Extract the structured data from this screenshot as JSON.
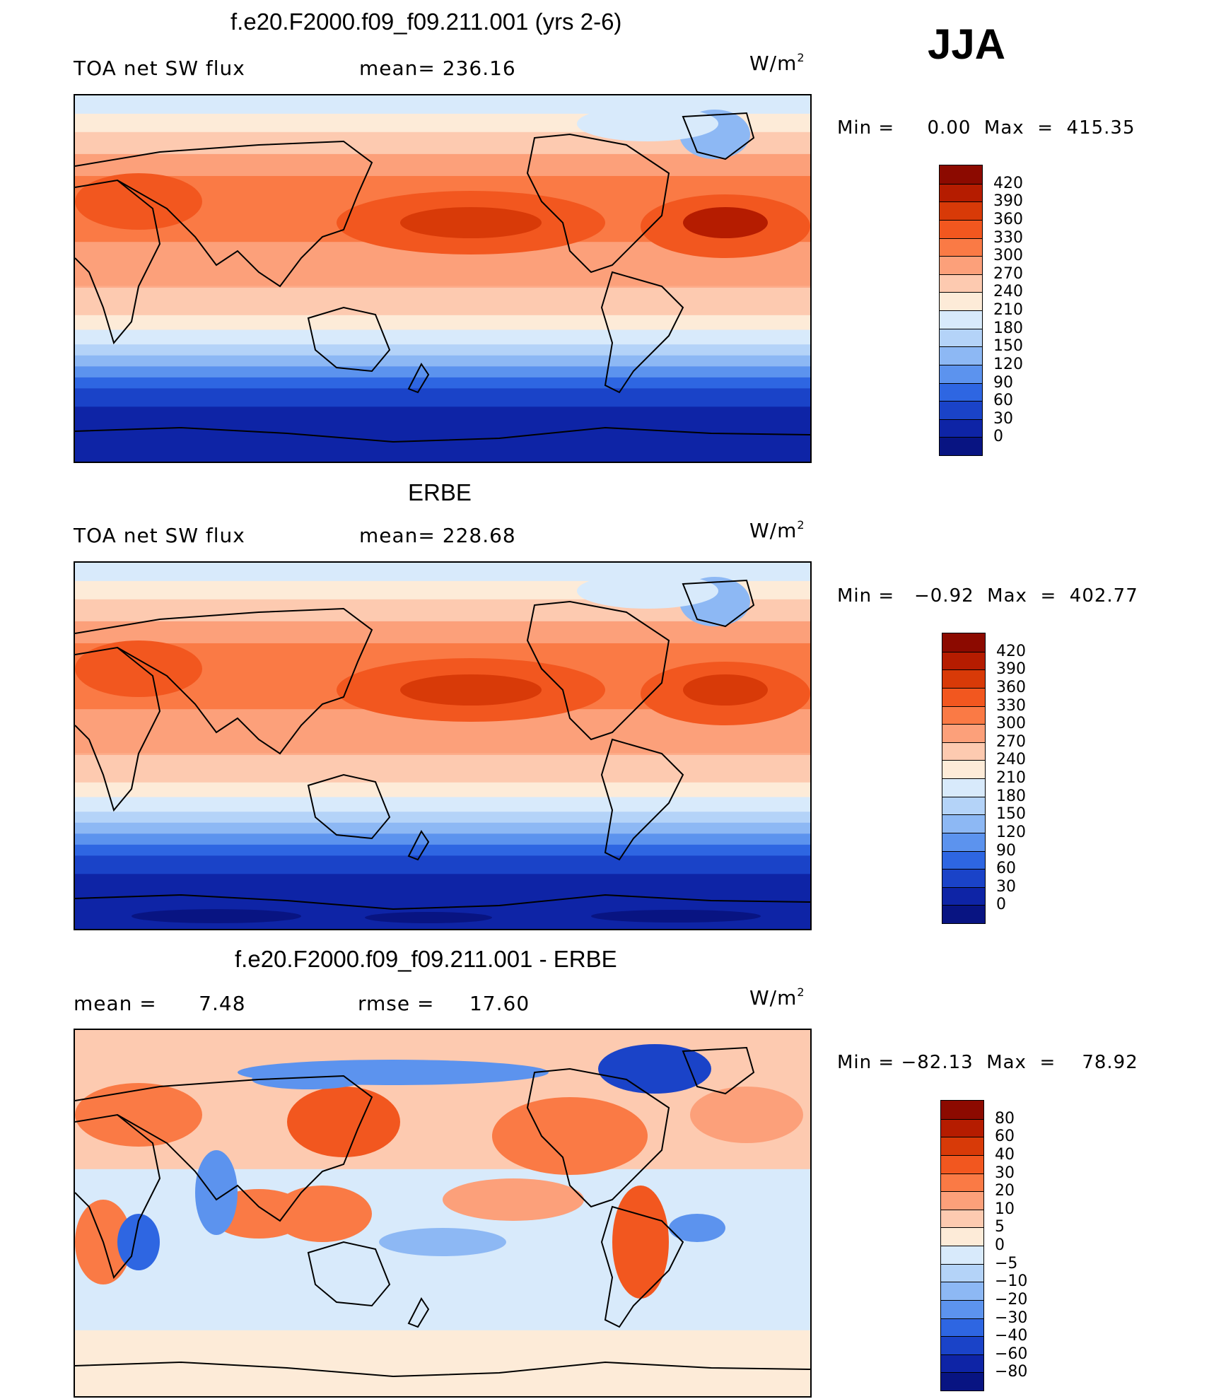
{
  "season": "JJA",
  "panels": [
    {
      "title": "f.e20.F2000.f09_f09.211.001 (yrs 2-6)",
      "left_label": "TOA net SW flux",
      "mid_label": "mean= 236.16",
      "units_base": "W/m",
      "units_sup": "2",
      "minmax": "Min =     0.00  Max  =  415.35",
      "colorbar": {
        "ticks": [
          "420",
          "390",
          "360",
          "330",
          "300",
          "270",
          "240",
          "210",
          "180",
          "150",
          "120",
          "90",
          "60",
          "30",
          "0"
        ],
        "colors": [
          "#8c0a00",
          "#b51c00",
          "#d83a08",
          "#f2571f",
          "#fa7a45",
          "#fca07a",
          "#fdcab0",
          "#fdebd8",
          "#d8eafb",
          "#b4d3f8",
          "#8db8f4",
          "#5c93ee",
          "#2e66e2",
          "#1a43c8",
          "#0e24a6",
          "#081482"
        ]
      },
      "map_kind": "model"
    },
    {
      "title": "ERBE",
      "left_label": "TOA net SW flux",
      "mid_label": "mean= 228.68",
      "units_base": "W/m",
      "units_sup": "2",
      "minmax": "Min =   −0.92  Max  =  402.77",
      "colorbar": {
        "ticks": [
          "420",
          "390",
          "360",
          "330",
          "300",
          "270",
          "240",
          "210",
          "180",
          "150",
          "120",
          "90",
          "60",
          "30",
          "0"
        ],
        "colors": [
          "#8c0a00",
          "#b51c00",
          "#d83a08",
          "#f2571f",
          "#fa7a45",
          "#fca07a",
          "#fdcab0",
          "#fdebd8",
          "#d8eafb",
          "#b4d3f8",
          "#8db8f4",
          "#5c93ee",
          "#2e66e2",
          "#1a43c8",
          "#0e24a6",
          "#081482"
        ]
      },
      "map_kind": "obs"
    },
    {
      "title": "f.e20.F2000.f09_f09.211.001 - ERBE",
      "left_label": "mean =      7.48",
      "mid_label": "rmse =     17.60",
      "units_base": "W/m",
      "units_sup": "2",
      "minmax": "Min = −82.13  Max  =    78.92",
      "colorbar": {
        "ticks": [
          "80",
          "60",
          "40",
          "30",
          "20",
          "10",
          "5",
          "0",
          "−5",
          "−10",
          "−20",
          "−30",
          "−40",
          "−60",
          "−80"
        ],
        "colors": [
          "#8c0a00",
          "#b51c00",
          "#d83a08",
          "#f2571f",
          "#fa7a45",
          "#fca07a",
          "#fdcab0",
          "#fdebd8",
          "#d8eafb",
          "#b4d3f8",
          "#8db8f4",
          "#5c93ee",
          "#2e66e2",
          "#1a43c8",
          "#0e24a6",
          "#081482"
        ]
      },
      "map_kind": "diff"
    }
  ],
  "chart_data": [
    {
      "type": "heatmap",
      "title": "f.e20.F2000.f09_f09.211.001 (yrs 2-6)",
      "field": "TOA net SW flux",
      "units": "W/m2",
      "mean": 236.16,
      "min": 0.0,
      "max": 415.35,
      "levels": [
        0,
        30,
        60,
        90,
        120,
        150,
        180,
        210,
        240,
        270,
        300,
        330,
        360,
        390,
        420
      ]
    },
    {
      "type": "heatmap",
      "title": "ERBE",
      "field": "TOA net SW flux",
      "units": "W/m2",
      "mean": 228.68,
      "min": -0.92,
      "max": 402.77,
      "levels": [
        0,
        30,
        60,
        90,
        120,
        150,
        180,
        210,
        240,
        270,
        300,
        330,
        360,
        390,
        420
      ]
    },
    {
      "type": "heatmap",
      "title": "f.e20.F2000.f09_f09.211.001 - ERBE",
      "units": "W/m2",
      "mean": 7.48,
      "rmse": 17.6,
      "min": -82.13,
      "max": 78.92,
      "levels": [
        -80,
        -60,
        -40,
        -30,
        -20,
        -10,
        -5,
        0,
        5,
        10,
        20,
        30,
        40,
        60,
        80
      ]
    }
  ]
}
